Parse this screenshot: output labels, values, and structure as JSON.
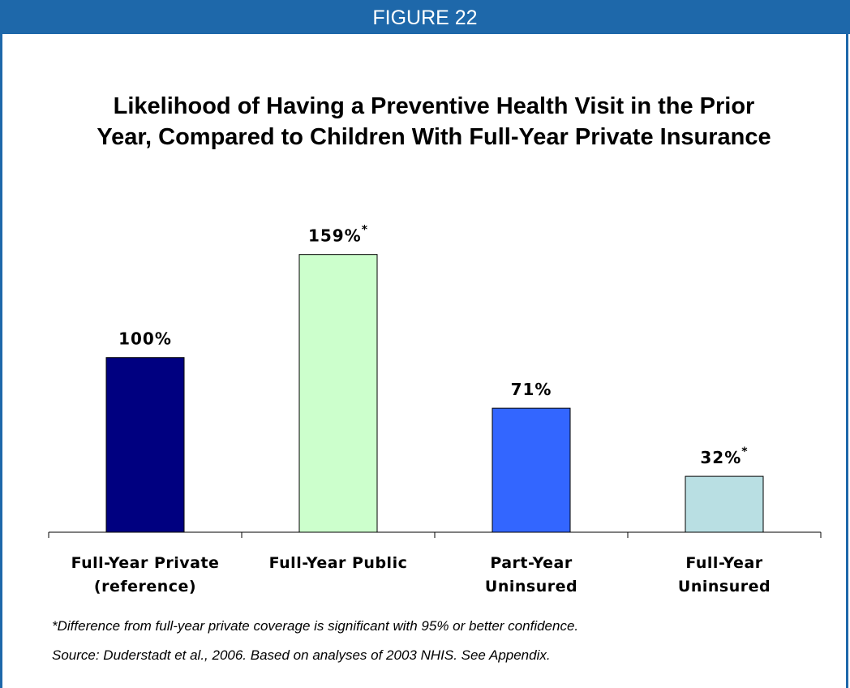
{
  "header": {
    "figure_label": "FIGURE 22"
  },
  "title": {
    "line1": "Likelihood of Having a Preventive Health Visit in the Prior",
    "line2": "Year, Compared to Children With Full-Year Private Insurance"
  },
  "chart_data": {
    "type": "bar",
    "categories": [
      [
        "Full-Year Private",
        "(reference)"
      ],
      [
        "Full-Year Public"
      ],
      [
        "Part-Year",
        "Uninsured"
      ],
      [
        "Full-Year",
        "Uninsured"
      ]
    ],
    "values": [
      100,
      159,
      71,
      32
    ],
    "value_labels": [
      "100%",
      "159%",
      "71%",
      "32%"
    ],
    "significant": [
      false,
      true,
      false,
      true
    ],
    "significance_marker": "*",
    "colors": [
      "#000080",
      "#ccffcc",
      "#3366ff",
      "#b9dfe3"
    ],
    "ylim": [
      0,
      170
    ],
    "grid": false,
    "legend": "none"
  },
  "footnotes": {
    "significance": "*Difference from full-year private coverage is significant with 95% or better confidence.",
    "source": "Source: Duderstadt et al., 2006.  Based on analyses of 2003 NHIS.  See Appendix."
  },
  "colors": {
    "frame": "#1e68aa",
    "header_text": "#ffffff"
  }
}
